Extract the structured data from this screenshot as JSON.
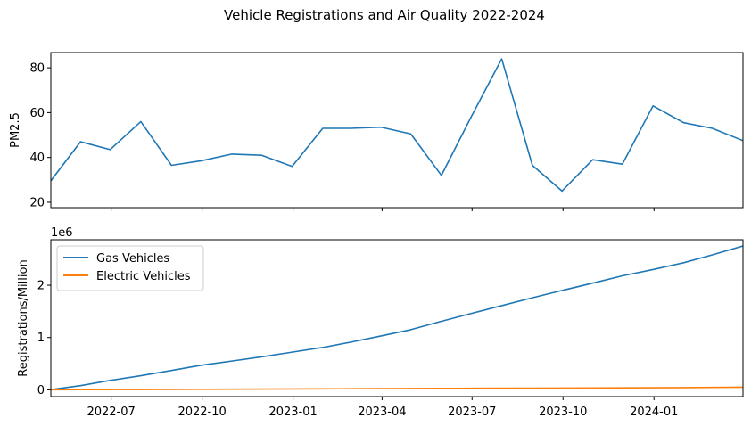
{
  "figure": {
    "suptitle": "Vehicle Registrations and Air Quality 2022-2024"
  },
  "chart_data": [
    {
      "type": "line",
      "panel": "top",
      "ylabel": "PM2.5",
      "xlabel": "",
      "x_axis": "date",
      "xlim": [
        "2022-05-01",
        "2024-03-31"
      ],
      "ylim": [
        17.6,
        86.8
      ],
      "yticks": [
        20,
        40,
        60,
        80
      ],
      "xtick_labels_shown": false,
      "grid": false,
      "colors": {
        "series": "#1f77b4"
      },
      "x": [
        "2022-04-30",
        "2022-05-31",
        "2022-06-30",
        "2022-07-31",
        "2022-08-31",
        "2022-09-30",
        "2022-10-31",
        "2022-11-30",
        "2022-12-31",
        "2023-01-31",
        "2023-02-28",
        "2023-03-31",
        "2023-04-30",
        "2023-05-31",
        "2023-06-30",
        "2023-07-31",
        "2023-08-31",
        "2023-09-30",
        "2023-10-31",
        "2023-11-30",
        "2023-12-31",
        "2024-01-31",
        "2024-02-29",
        "2024-03-31"
      ],
      "series": [
        {
          "values": [
            29.0,
            47.0,
            43.5,
            56.0,
            36.5,
            38.5,
            41.5,
            41.0,
            36.0,
            53.0,
            53.0,
            53.5,
            50.5,
            32.0,
            58.0,
            84.0,
            36.5,
            25.0,
            39.0,
            37.0,
            63.0,
            55.5,
            53.0,
            47.5
          ]
        }
      ]
    },
    {
      "type": "line",
      "panel": "bottom",
      "ylabel": "Registrations/Million",
      "xlabel": "",
      "x_axis": "date",
      "xlim": [
        "2022-05-01",
        "2024-03-31"
      ],
      "ylim": [
        -0.13,
        2.87
      ],
      "yticks": [
        0,
        1,
        2
      ],
      "y_offset_label": "1e6",
      "xtick_labels": [
        "2022-07",
        "2022-10",
        "2023-01",
        "2023-04",
        "2023-07",
        "2023-10",
        "2024-01"
      ],
      "grid": false,
      "legend": "top-left",
      "colors": {
        "gas": "#1f77b4",
        "electric": "#ff7f0e"
      },
      "x": [
        "2022-04-30",
        "2022-05-31",
        "2022-06-30",
        "2022-07-31",
        "2022-08-31",
        "2022-09-30",
        "2022-10-31",
        "2022-11-30",
        "2022-12-31",
        "2023-01-31",
        "2023-02-28",
        "2023-03-31",
        "2023-04-30",
        "2023-05-31",
        "2023-06-30",
        "2023-07-31",
        "2023-08-31",
        "2023-09-30",
        "2023-10-31",
        "2023-11-30",
        "2023-12-31",
        "2024-01-31",
        "2024-02-29",
        "2024-03-31"
      ],
      "series": [
        {
          "name": "Gas Vehicles",
          "values": [
            0.0,
            0.08,
            0.18,
            0.27,
            0.37,
            0.47,
            0.55,
            0.63,
            0.72,
            0.81,
            0.91,
            1.03,
            1.15,
            1.31,
            1.46,
            1.61,
            1.76,
            1.9,
            2.04,
            2.18,
            2.3,
            2.43,
            2.58,
            2.75
          ]
        },
        {
          "name": "Electric Vehicles",
          "values": [
            0.0,
            0.002,
            0.004,
            0.006,
            0.008,
            0.01,
            0.012,
            0.014,
            0.016,
            0.018,
            0.02,
            0.022,
            0.024,
            0.026,
            0.028,
            0.03,
            0.032,
            0.034,
            0.036,
            0.038,
            0.04,
            0.042,
            0.046,
            0.05
          ]
        }
      ]
    }
  ]
}
